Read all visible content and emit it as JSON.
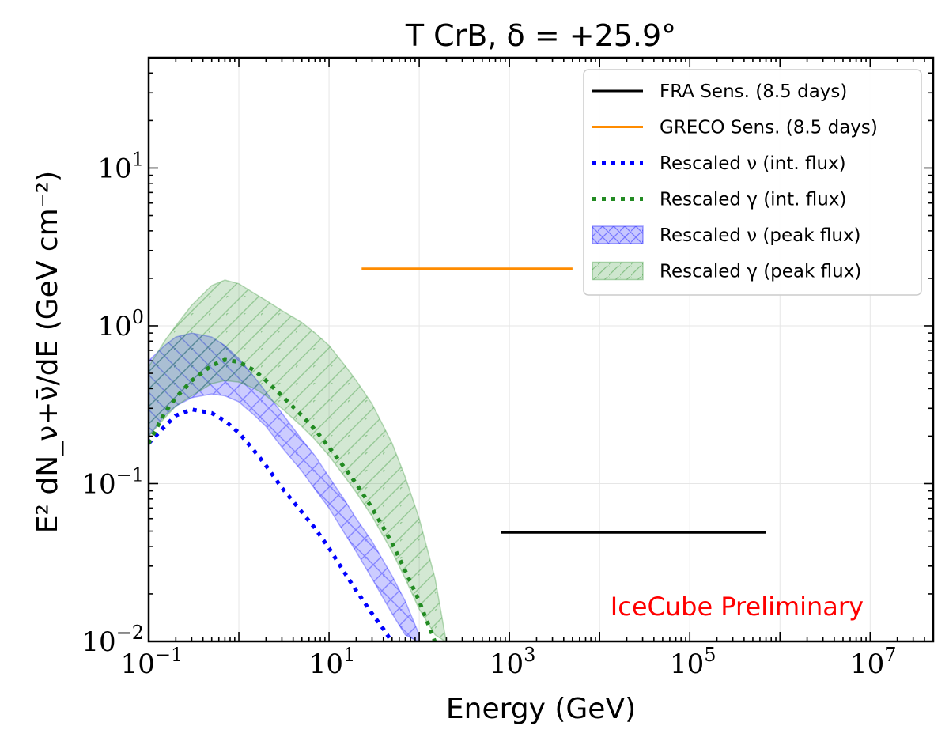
{
  "chart_data": {
    "type": "line",
    "title": "T CrB, δ = +25.9°",
    "xlabel": "Energy (GeV)",
    "ylabel": "E² dN_ν+ν̄/dE (GeV cm⁻²)",
    "xscale": "log",
    "yscale": "log",
    "xlim": [
      0.1,
      50000000
    ],
    "ylim": [
      0.01,
      50
    ],
    "grid": true,
    "legend_position": "top-right",
    "x_ticks": [
      {
        "value": 0.1,
        "base": "10",
        "exp": "−1"
      },
      {
        "value": 10,
        "base": "10",
        "exp": "1"
      },
      {
        "value": 1000,
        "base": "10",
        "exp": "3"
      },
      {
        "value": 100000,
        "base": "10",
        "exp": "5"
      },
      {
        "value": 10000000,
        "base": "10",
        "exp": "7"
      }
    ],
    "y_ticks": [
      {
        "value": 0.01,
        "base": "10",
        "exp": "−2"
      },
      {
        "value": 0.1,
        "base": "10",
        "exp": "−1"
      },
      {
        "value": 1,
        "base": "10",
        "exp": "0"
      },
      {
        "value": 10,
        "base": "10",
        "exp": "1"
      }
    ],
    "series": [
      {
        "name": "FRA Sens. (8.5 days)",
        "kind": "hline",
        "color": "#000000",
        "x": [
          800,
          700000
        ],
        "y": [
          0.049,
          0.049
        ]
      },
      {
        "name": "GRECO Sens. (8.5 days)",
        "kind": "hline",
        "color": "#ff8c00",
        "x": [
          23,
          5000
        ],
        "y": [
          2.3,
          2.3
        ]
      },
      {
        "name": "Rescaled ν (int. flux)",
        "kind": "dotted",
        "color": "#0000ff",
        "x": [
          0.1,
          0.15,
          0.2,
          0.3,
          0.5,
          0.7,
          1,
          1.5,
          2,
          3,
          5,
          7,
          10,
          15,
          20,
          30,
          40,
          50
        ],
        "y": [
          0.18,
          0.23,
          0.27,
          0.295,
          0.28,
          0.25,
          0.21,
          0.16,
          0.13,
          0.094,
          0.066,
          0.052,
          0.039,
          0.027,
          0.021,
          0.015,
          0.012,
          0.0099
        ]
      },
      {
        "name": "Rescaled γ (int. flux)",
        "kind": "dotted",
        "color": "#228b22",
        "x": [
          0.1,
          0.15,
          0.2,
          0.3,
          0.5,
          0.7,
          1,
          1.5,
          2,
          3,
          5,
          7,
          10,
          15,
          20,
          30,
          50,
          70,
          100,
          150
        ],
        "y": [
          0.18,
          0.28,
          0.35,
          0.45,
          0.56,
          0.61,
          0.59,
          0.52,
          0.45,
          0.36,
          0.27,
          0.22,
          0.17,
          0.125,
          0.1,
          0.07,
          0.042,
          0.028,
          0.018,
          0.0099
        ]
      },
      {
        "name": "Rescaled ν (peak flux)",
        "kind": "band",
        "hatch": "cross",
        "color": "#0000ff",
        "x": [
          0.1,
          0.15,
          0.2,
          0.3,
          0.5,
          0.7,
          1,
          1.5,
          2,
          3,
          5,
          7,
          10,
          15,
          20,
          30,
          50,
          70,
          100
        ],
        "upper": [
          0.6,
          0.75,
          0.85,
          0.9,
          0.85,
          0.75,
          0.62,
          0.47,
          0.38,
          0.28,
          0.19,
          0.15,
          0.11,
          0.078,
          0.06,
          0.043,
          0.026,
          0.018,
          0.011
        ],
        "lower": [
          0.2,
          0.27,
          0.31,
          0.35,
          0.37,
          0.36,
          0.33,
          0.27,
          0.23,
          0.17,
          0.12,
          0.092,
          0.07,
          0.048,
          0.037,
          0.025,
          0.015,
          0.011,
          0.0099
        ]
      },
      {
        "name": "Rescaled γ (peak flux)",
        "kind": "band",
        "hatch": "diag",
        "color": "#228b22",
        "x": [
          0.1,
          0.15,
          0.2,
          0.3,
          0.5,
          0.7,
          1,
          1.5,
          2,
          3,
          5,
          7,
          10,
          15,
          20,
          30,
          50,
          70,
          100,
          150,
          200
        ],
        "upper": [
          0.55,
          0.8,
          1.0,
          1.35,
          1.8,
          1.95,
          1.85,
          1.6,
          1.45,
          1.25,
          1.05,
          0.9,
          0.75,
          0.56,
          0.45,
          0.32,
          0.18,
          0.11,
          0.06,
          0.025,
          0.0099
        ],
        "lower": [
          0.2,
          0.26,
          0.31,
          0.36,
          0.43,
          0.45,
          0.44,
          0.4,
          0.36,
          0.3,
          0.23,
          0.19,
          0.15,
          0.11,
          0.088,
          0.062,
          0.037,
          0.025,
          0.016,
          0.011,
          0.0099
        ]
      }
    ],
    "annotation": {
      "text": "IceCube Preliminary",
      "color": "#ff0000"
    }
  }
}
